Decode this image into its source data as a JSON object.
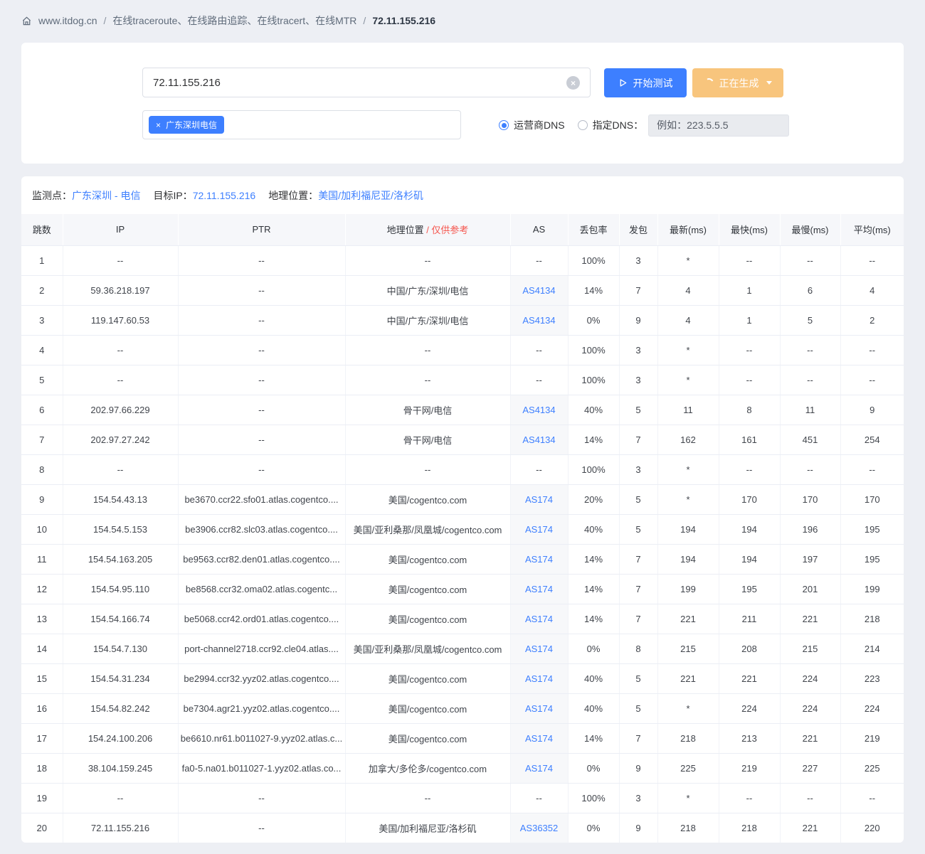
{
  "breadcrumb": {
    "home": "www.itdog.cn",
    "sep": "/",
    "section": "在线traceroute、在线路由追踪、在线tracert、在线MTR",
    "current": "72.11.155.216"
  },
  "controls": {
    "target_input": "72.11.155.216",
    "clear_glyph": "×",
    "start_label": "开始测试",
    "generating_label": "正在生成",
    "node_tag": "广东深圳电信",
    "tag_close_glyph": "×",
    "dns_radio_carrier": "运营商DNS",
    "dns_radio_custom": "指定DNS：",
    "dns_placeholder": "例如：223.5.5.5"
  },
  "summary": {
    "monitor_label": "监测点：",
    "monitor_value": "广东深圳 - 电信",
    "target_label": "目标IP：",
    "target_value": "72.11.155.216",
    "geo_label": "地理位置：",
    "geo_value": "美国/加利福尼亚/洛杉矶"
  },
  "table": {
    "headers": [
      "跳数",
      "IP",
      "PTR",
      "地理位置",
      "AS",
      "丢包率",
      "发包",
      "最新(ms)",
      "最快(ms)",
      "最慢(ms)",
      "平均(ms)"
    ],
    "geo_note": "/ 仅供参考",
    "rows": [
      {
        "hop": "1",
        "ip": "--",
        "ptr": "--",
        "geo": "--",
        "as": "--",
        "loss": "100%",
        "sent": "3",
        "latest": "*",
        "best": "--",
        "worst": "--",
        "avg": "--"
      },
      {
        "hop": "2",
        "ip": "59.36.218.197",
        "ptr": "--",
        "geo": "中国/广东/深圳/电信",
        "as": "AS4134",
        "loss": "14%",
        "sent": "7",
        "latest": "4",
        "best": "1",
        "worst": "6",
        "avg": "4"
      },
      {
        "hop": "3",
        "ip": "119.147.60.53",
        "ptr": "--",
        "geo": "中国/广东/深圳/电信",
        "as": "AS4134",
        "loss": "0%",
        "sent": "9",
        "latest": "4",
        "best": "1",
        "worst": "5",
        "avg": "2"
      },
      {
        "hop": "4",
        "ip": "--",
        "ptr": "--",
        "geo": "--",
        "as": "--",
        "loss": "100%",
        "sent": "3",
        "latest": "*",
        "best": "--",
        "worst": "--",
        "avg": "--"
      },
      {
        "hop": "5",
        "ip": "--",
        "ptr": "--",
        "geo": "--",
        "as": "--",
        "loss": "100%",
        "sent": "3",
        "latest": "*",
        "best": "--",
        "worst": "--",
        "avg": "--"
      },
      {
        "hop": "6",
        "ip": "202.97.66.229",
        "ptr": "--",
        "geo": "骨干网/电信",
        "as": "AS4134",
        "loss": "40%",
        "sent": "5",
        "latest": "11",
        "best": "8",
        "worst": "11",
        "avg": "9"
      },
      {
        "hop": "7",
        "ip": "202.97.27.242",
        "ptr": "--",
        "geo": "骨干网/电信",
        "as": "AS4134",
        "loss": "14%",
        "sent": "7",
        "latest": "162",
        "best": "161",
        "worst": "451",
        "avg": "254"
      },
      {
        "hop": "8",
        "ip": "--",
        "ptr": "--",
        "geo": "--",
        "as": "--",
        "loss": "100%",
        "sent": "3",
        "latest": "*",
        "best": "--",
        "worst": "--",
        "avg": "--"
      },
      {
        "hop": "9",
        "ip": "154.54.43.13",
        "ptr": "be3670.ccr22.sfo01.atlas.cogentco....",
        "geo": "美国/cogentco.com",
        "as": "AS174",
        "loss": "20%",
        "sent": "5",
        "latest": "*",
        "best": "170",
        "worst": "170",
        "avg": "170"
      },
      {
        "hop": "10",
        "ip": "154.54.5.153",
        "ptr": "be3906.ccr82.slc03.atlas.cogentco....",
        "geo": "美国/亚利桑那/凤凰城/cogentco.com",
        "as": "AS174",
        "loss": "40%",
        "sent": "5",
        "latest": "194",
        "best": "194",
        "worst": "196",
        "avg": "195"
      },
      {
        "hop": "11",
        "ip": "154.54.163.205",
        "ptr": "be9563.ccr82.den01.atlas.cogentco....",
        "geo": "美国/cogentco.com",
        "as": "AS174",
        "loss": "14%",
        "sent": "7",
        "latest": "194",
        "best": "194",
        "worst": "197",
        "avg": "195"
      },
      {
        "hop": "12",
        "ip": "154.54.95.110",
        "ptr": "be8568.ccr32.oma02.atlas.cogentc...",
        "geo": "美国/cogentco.com",
        "as": "AS174",
        "loss": "14%",
        "sent": "7",
        "latest": "199",
        "best": "195",
        "worst": "201",
        "avg": "199"
      },
      {
        "hop": "13",
        "ip": "154.54.166.74",
        "ptr": "be5068.ccr42.ord01.atlas.cogentco....",
        "geo": "美国/cogentco.com",
        "as": "AS174",
        "loss": "14%",
        "sent": "7",
        "latest": "221",
        "best": "211",
        "worst": "221",
        "avg": "218"
      },
      {
        "hop": "14",
        "ip": "154.54.7.130",
        "ptr": "port-channel2718.ccr92.cle04.atlas....",
        "geo": "美国/亚利桑那/凤凰城/cogentco.com",
        "as": "AS174",
        "loss": "0%",
        "sent": "8",
        "latest": "215",
        "best": "208",
        "worst": "215",
        "avg": "214"
      },
      {
        "hop": "15",
        "ip": "154.54.31.234",
        "ptr": "be2994.ccr32.yyz02.atlas.cogentco....",
        "geo": "美国/cogentco.com",
        "as": "AS174",
        "loss": "40%",
        "sent": "5",
        "latest": "221",
        "best": "221",
        "worst": "224",
        "avg": "223"
      },
      {
        "hop": "16",
        "ip": "154.54.82.242",
        "ptr": "be7304.agr21.yyz02.atlas.cogentco....",
        "geo": "美国/cogentco.com",
        "as": "AS174",
        "loss": "40%",
        "sent": "5",
        "latest": "*",
        "best": "224",
        "worst": "224",
        "avg": "224"
      },
      {
        "hop": "17",
        "ip": "154.24.100.206",
        "ptr": "be6610.nr61.b011027-9.yyz02.atlas.c...",
        "geo": "美国/cogentco.com",
        "as": "AS174",
        "loss": "14%",
        "sent": "7",
        "latest": "218",
        "best": "213",
        "worst": "221",
        "avg": "219"
      },
      {
        "hop": "18",
        "ip": "38.104.159.245",
        "ptr": "fa0-5.na01.b011027-1.yyz02.atlas.co...",
        "geo": "加拿大/多伦多/cogentco.com",
        "as": "AS174",
        "loss": "0%",
        "sent": "9",
        "latest": "225",
        "best": "219",
        "worst": "227",
        "avg": "225"
      },
      {
        "hop": "19",
        "ip": "--",
        "ptr": "--",
        "geo": "--",
        "as": "--",
        "loss": "100%",
        "sent": "3",
        "latest": "*",
        "best": "--",
        "worst": "--",
        "avg": "--"
      },
      {
        "hop": "20",
        "ip": "72.11.155.216",
        "ptr": "--",
        "geo": "美国/加利福尼亚/洛杉矶",
        "as": "AS36352",
        "loss": "0%",
        "sent": "9",
        "latest": "218",
        "best": "218",
        "worst": "221",
        "avg": "220"
      }
    ]
  },
  "colors": {
    "accent_blue": "#3d7fff",
    "warning_orange": "#f8c57d",
    "danger_red": "#f5564e",
    "page_background": "#edeff4"
  }
}
